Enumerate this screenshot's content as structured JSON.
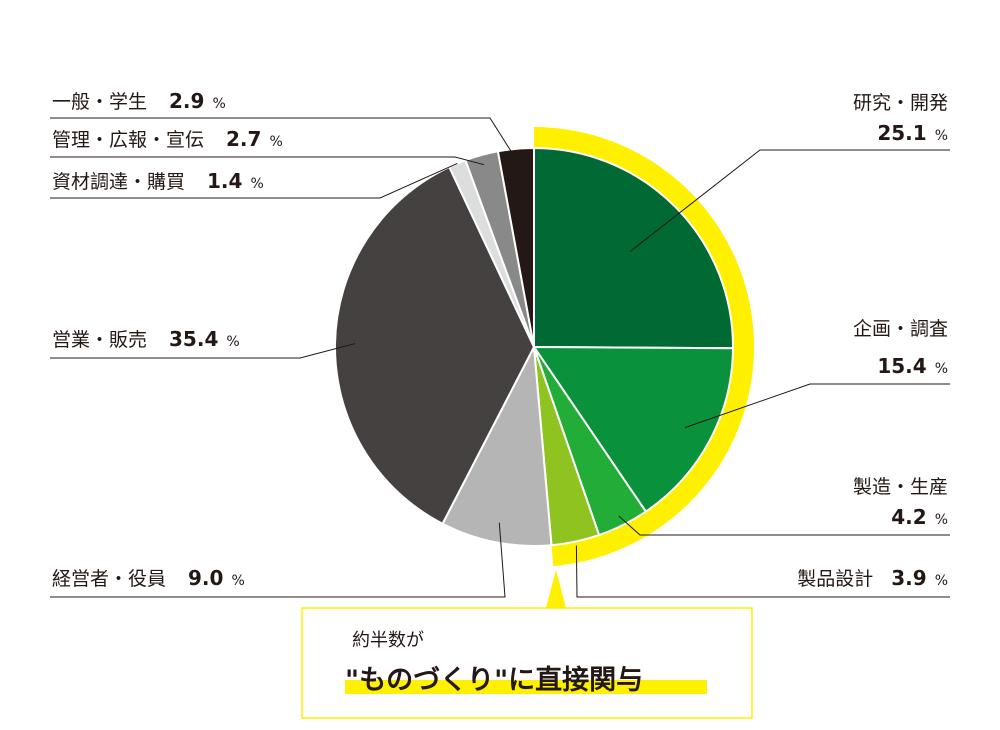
{
  "chart_data": {
    "type": "pie",
    "unit": "%",
    "slices": [
      {
        "label": "研究・開発",
        "value": 25.1,
        "color": "#006934"
      },
      {
        "label": "企画・調査",
        "value": 15.4,
        "color": "#0a913b"
      },
      {
        "label": "製造・生産",
        "value": 4.2,
        "color": "#22ac38"
      },
      {
        "label": "製品設計",
        "value": 3.9,
        "color": "#8fc31f"
      },
      {
        "label": "経営者・役員",
        "value": 9.0,
        "color": "#b5b5b6"
      },
      {
        "label": "営業・販売",
        "value": 35.4,
        "color": "#454141"
      },
      {
        "label": "資材調達・購買",
        "value": 1.4,
        "color": "#dcdddd"
      },
      {
        "label": "管理・広報・宣伝",
        "value": 2.7,
        "color": "#898989"
      },
      {
        "label": "一般・学生",
        "value": 2.9,
        "color": "#231815"
      }
    ],
    "highlight_color": "#fff000"
  },
  "callout": {
    "line1": "約半数が",
    "line2": "\"ものづくり\"に直接関与"
  }
}
